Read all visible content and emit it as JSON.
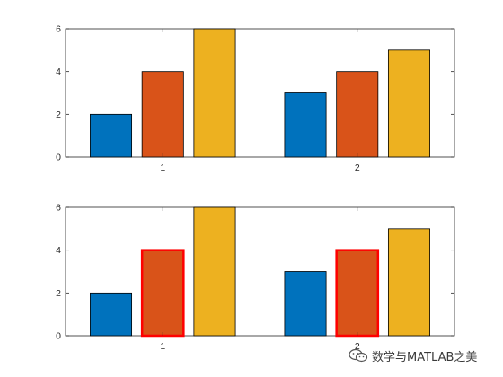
{
  "colors": {
    "series": [
      "#0072BD",
      "#D95319",
      "#EDB120"
    ],
    "highlight": "#FF0000",
    "axis": "#262626",
    "background": "#FFFFFF"
  },
  "chart_data": [
    {
      "type": "bar",
      "categories": [
        "1",
        "2"
      ],
      "series": [
        {
          "values": [
            2,
            3
          ]
        },
        {
          "values": [
            4,
            4
          ]
        },
        {
          "values": [
            6,
            5
          ]
        }
      ],
      "ylim": [
        0,
        6
      ],
      "yticks": [
        "0",
        "2",
        "4",
        "6"
      ],
      "xticks": [
        "1",
        "2"
      ],
      "grid": false,
      "title": "",
      "xlabel": "",
      "ylabel": ""
    },
    {
      "type": "bar",
      "categories": [
        "1",
        "2"
      ],
      "series": [
        {
          "values": [
            2,
            3
          ]
        },
        {
          "values": [
            4,
            4
          ],
          "highlighted_edge": true
        },
        {
          "values": [
            6,
            5
          ]
        }
      ],
      "ylim": [
        0,
        6
      ],
      "yticks": [
        "0",
        "2",
        "4",
        "6"
      ],
      "xticks": [
        "1",
        "2"
      ],
      "grid": false,
      "title": "",
      "xlabel": "",
      "ylabel": ""
    }
  ],
  "watermark": {
    "text": "数学与MATLAB之美",
    "icon": "wechat-icon"
  }
}
